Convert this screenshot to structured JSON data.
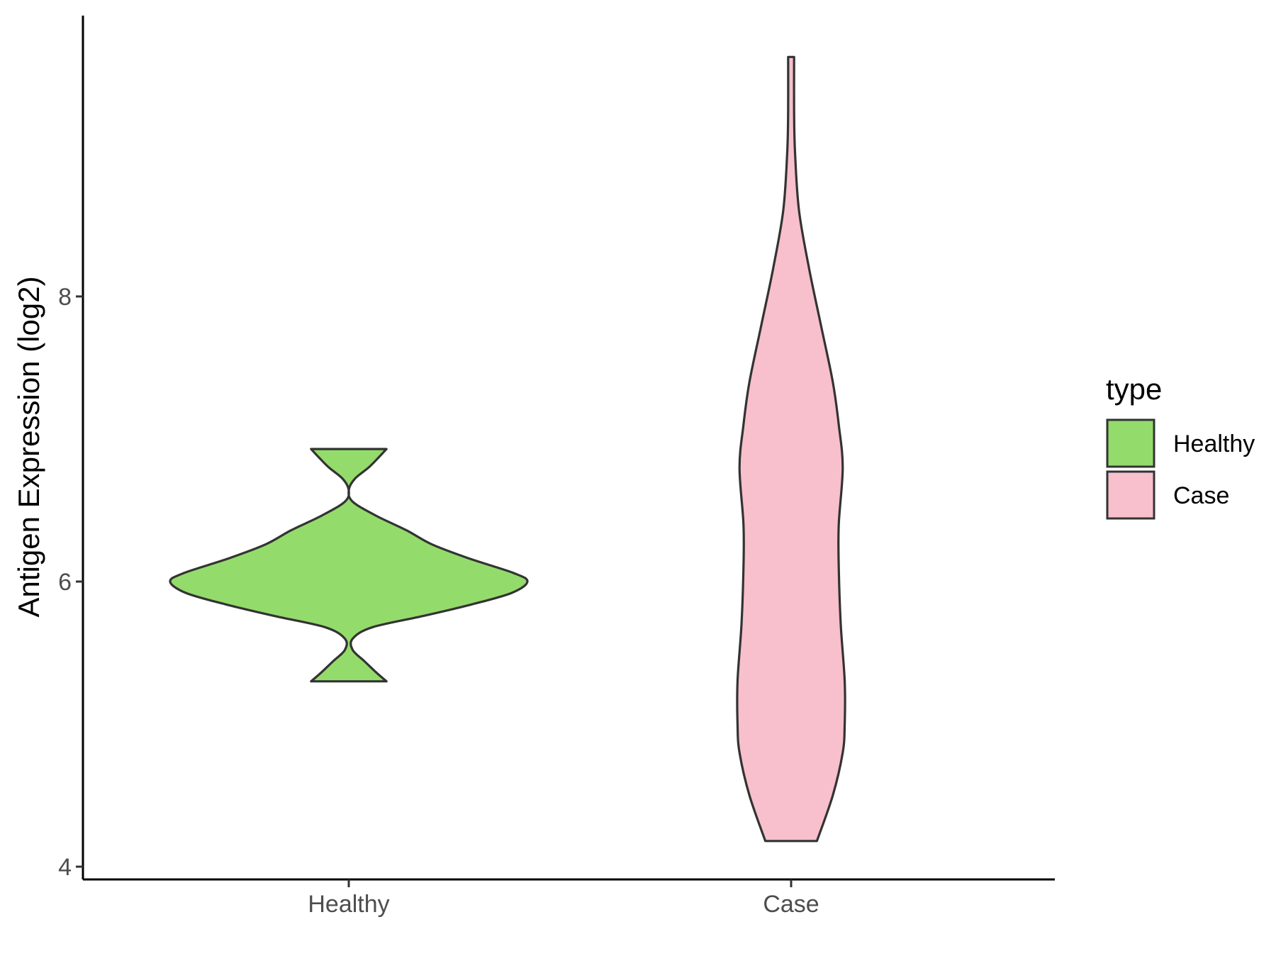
{
  "chart_data": {
    "type": "violin",
    "title": "",
    "xlabel": "",
    "ylabel": "Antigen Expression (log2)",
    "ylim": [
      3.9,
      9.95
    ],
    "yticks": [
      4,
      6,
      8
    ],
    "categories": [
      "Healthy",
      "Case"
    ],
    "legend": {
      "title": "type",
      "position": "right",
      "entries": [
        {
          "label": "Healthy",
          "color": "#93DC6B"
        },
        {
          "label": "Case",
          "color": "#F7C0CC"
        }
      ]
    },
    "series": [
      {
        "category": "Healthy",
        "color": "#93DC6B",
        "min": 5.3,
        "max": 6.93,
        "density": [
          [
            5.3,
            0.19
          ],
          [
            5.36,
            0.14
          ],
          [
            5.44,
            0.08
          ],
          [
            5.52,
            0.02
          ],
          [
            5.6,
            0.02
          ],
          [
            5.68,
            0.12
          ],
          [
            5.76,
            0.38
          ],
          [
            5.84,
            0.62
          ],
          [
            5.92,
            0.82
          ],
          [
            6.0,
            0.9
          ],
          [
            6.06,
            0.83
          ],
          [
            6.16,
            0.61
          ],
          [
            6.26,
            0.42
          ],
          [
            6.36,
            0.29
          ],
          [
            6.46,
            0.14
          ],
          [
            6.56,
            0.02
          ],
          [
            6.64,
            0.0
          ],
          [
            6.72,
            0.03
          ],
          [
            6.8,
            0.1
          ],
          [
            6.87,
            0.15
          ],
          [
            6.93,
            0.19
          ]
        ]
      },
      {
        "category": "Case",
        "color": "#F7C0CC",
        "min": 4.18,
        "max": 9.68,
        "density": [
          [
            4.18,
            0.13
          ],
          [
            4.5,
            0.21
          ],
          [
            4.8,
            0.26
          ],
          [
            5.0,
            0.27
          ],
          [
            5.3,
            0.27
          ],
          [
            5.7,
            0.25
          ],
          [
            6.1,
            0.24
          ],
          [
            6.4,
            0.24
          ],
          [
            6.8,
            0.26
          ],
          [
            7.1,
            0.24
          ],
          [
            7.4,
            0.21
          ],
          [
            7.8,
            0.15
          ],
          [
            8.2,
            0.09
          ],
          [
            8.6,
            0.04
          ],
          [
            9.0,
            0.02
          ],
          [
            9.3,
            0.015
          ],
          [
            9.68,
            0.015
          ]
        ]
      }
    ]
  }
}
